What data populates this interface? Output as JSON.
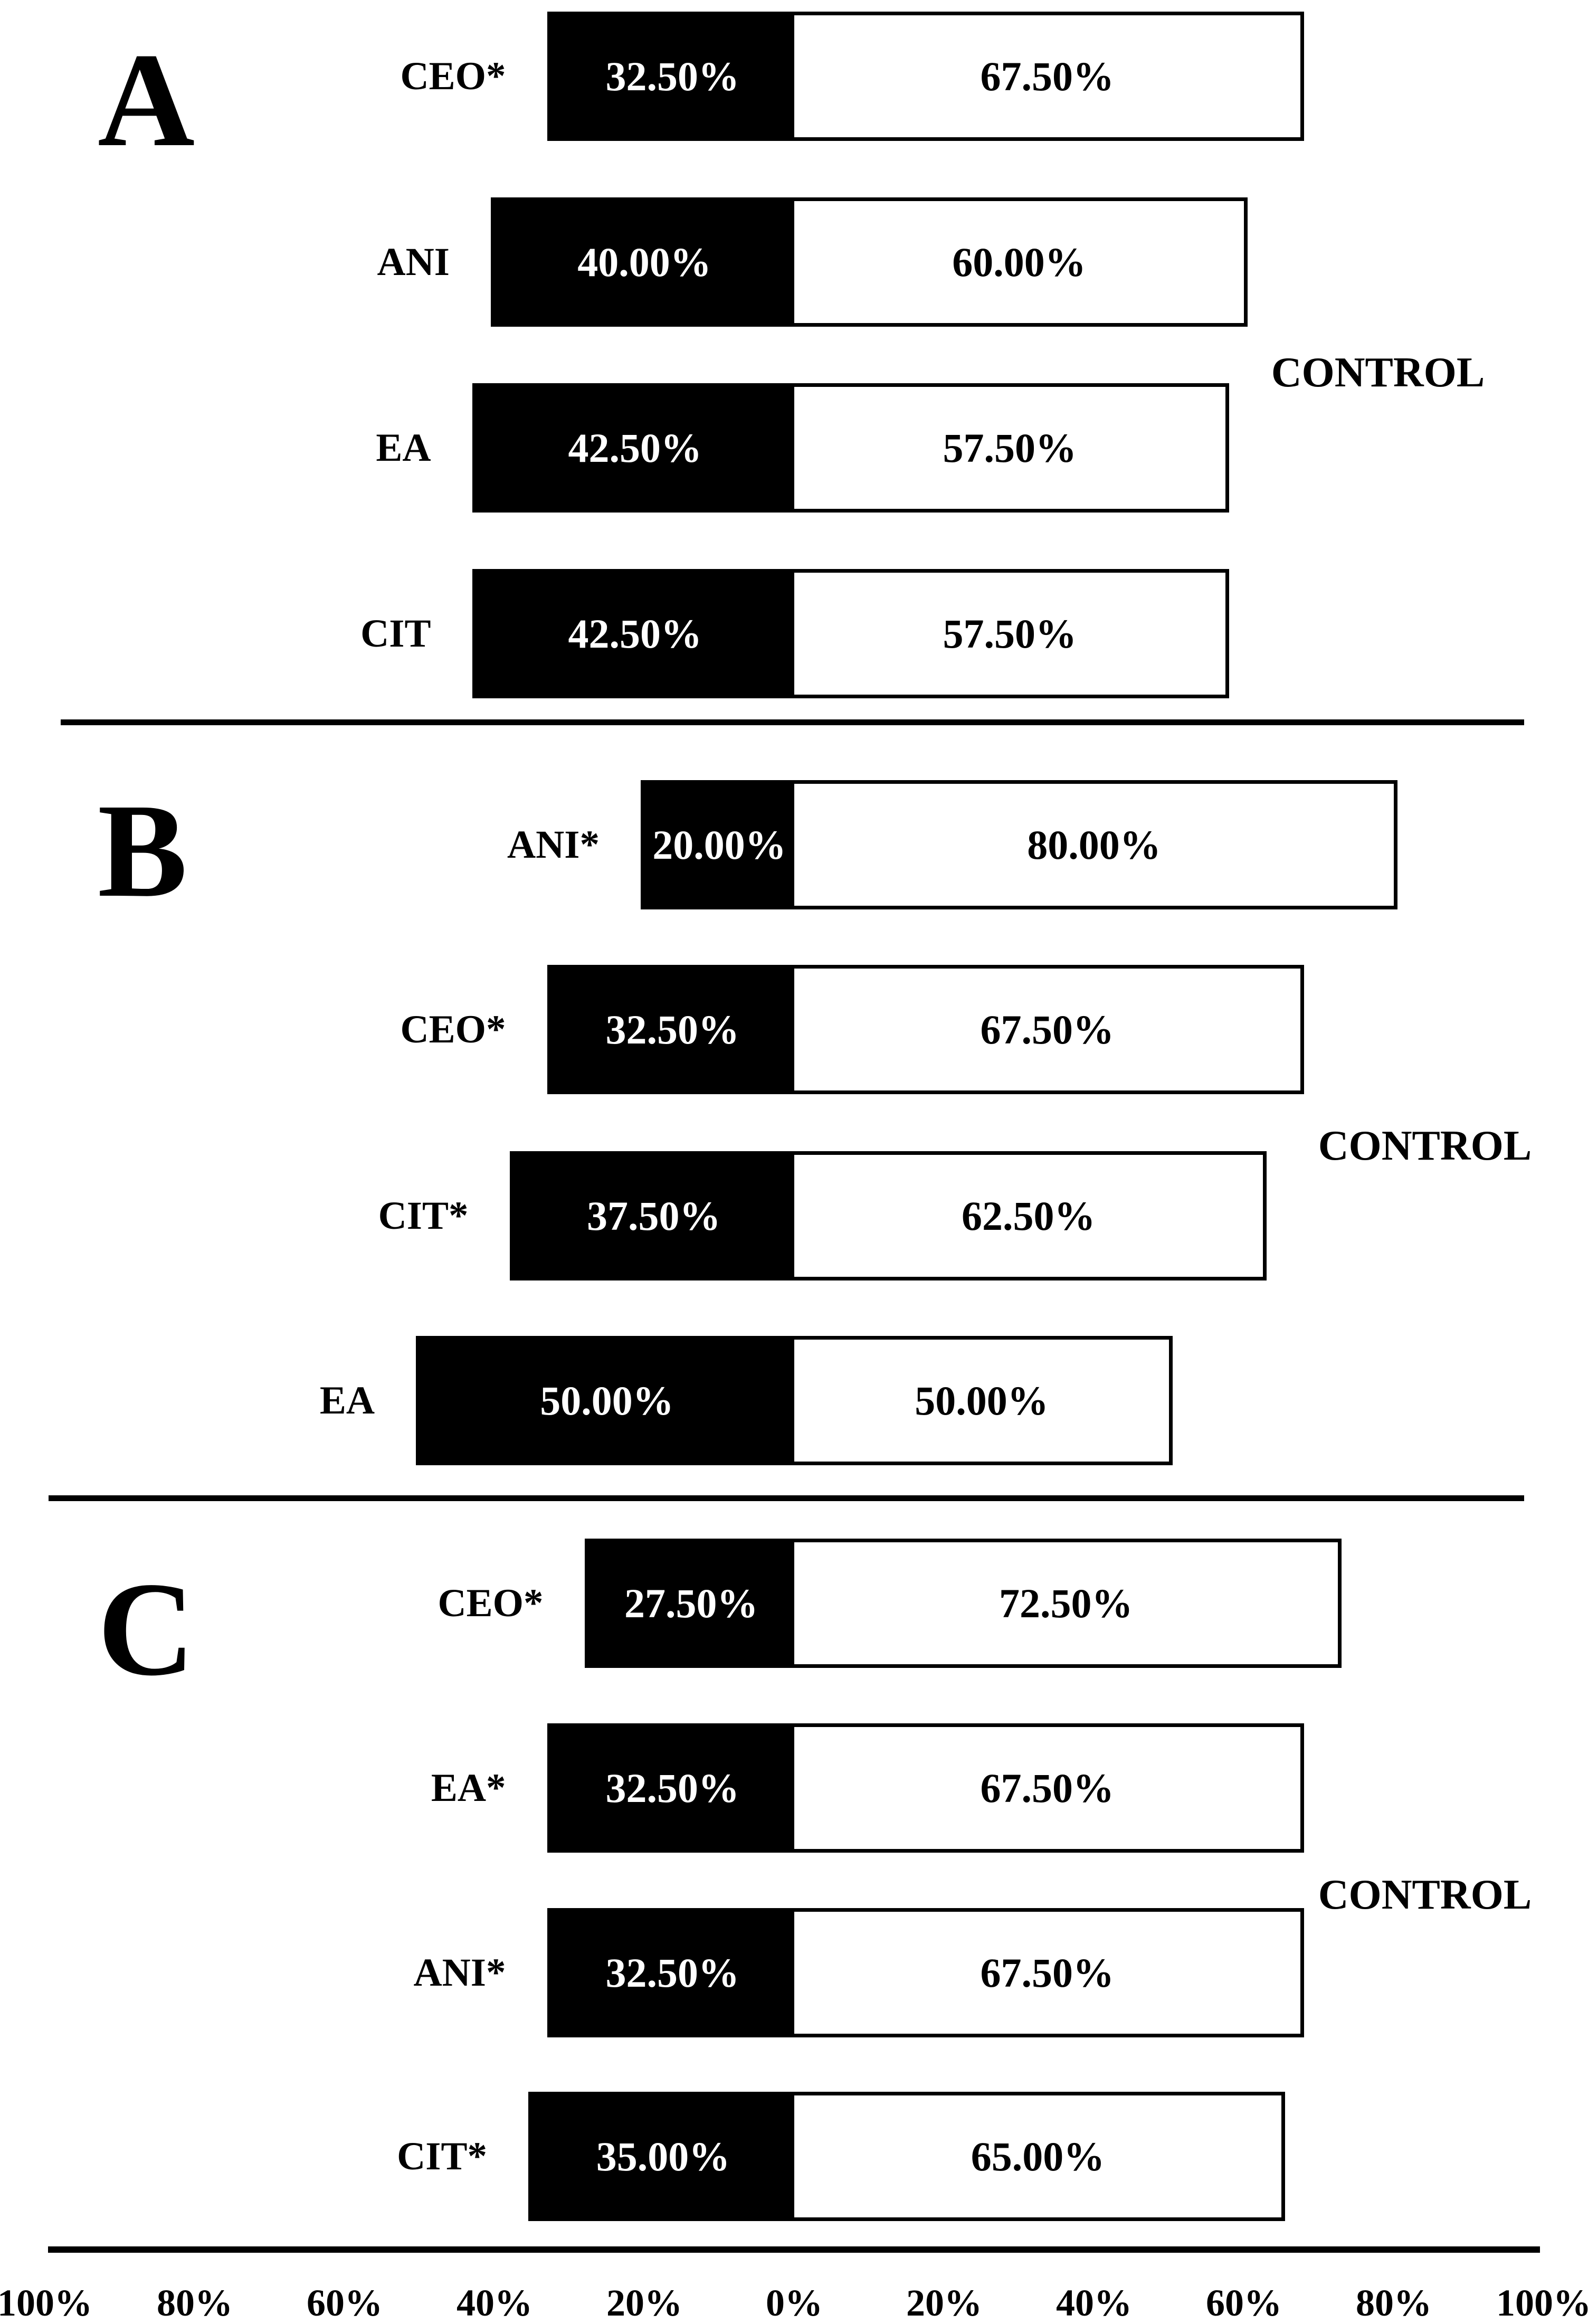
{
  "figure_title": "",
  "colors": {
    "background": "#ffffff",
    "left_segment_fill": "#000000",
    "right_segment_fill": "#ffffff",
    "bar_border": "#000000",
    "text": "#000000",
    "left_segment_text": "#ffffff",
    "right_segment_text": "#000000"
  },
  "chart_data": {
    "type": "bar",
    "variant": "horizontal-diverging-stacked",
    "unit": "%",
    "xlabel": "",
    "ylabel": "",
    "x_range_pct": [
      -100,
      100
    ],
    "grid": false,
    "legend_position": "right-of-each-panel",
    "axis_ticks": [
      "100%",
      "80%",
      "60%",
      "40%",
      "20%",
      "0%",
      "20%",
      "40%",
      "60%",
      "80%",
      "100%"
    ],
    "panels": [
      {
        "panel": "A",
        "right_label": "CONTROL",
        "rows": [
          {
            "category": "CEO*",
            "left_value": 32.5,
            "right_value": 67.5,
            "left_label": "32.50%",
            "right_label": "67.50%"
          },
          {
            "category": "ANI",
            "left_value": 40.0,
            "right_value": 60.0,
            "left_label": "40.00%",
            "right_label": "60.00%"
          },
          {
            "category": "EA",
            "left_value": 42.5,
            "right_value": 57.5,
            "left_label": "42.50%",
            "right_label": "57.50%"
          },
          {
            "category": "CIT",
            "left_value": 42.5,
            "right_value": 57.5,
            "left_label": "42.50%",
            "right_label": "57.50%"
          }
        ]
      },
      {
        "panel": "B",
        "right_label": "CONTROL",
        "rows": [
          {
            "category": "ANI*",
            "left_value": 20.0,
            "right_value": 80.0,
            "left_label": "20.00%",
            "right_label": "80.00%"
          },
          {
            "category": "CEO*",
            "left_value": 32.5,
            "right_value": 67.5,
            "left_label": "32.50%",
            "right_label": "67.50%"
          },
          {
            "category": "CIT*",
            "left_value": 37.5,
            "right_value": 62.5,
            "left_label": "37.50%",
            "right_label": "62.50%"
          },
          {
            "category": "EA",
            "left_value": 50.0,
            "right_value": 50.0,
            "left_label": "50.00%",
            "right_label": "50.00%"
          }
        ]
      },
      {
        "panel": "C",
        "right_label": "CONTROL",
        "rows": [
          {
            "category": "CEO*",
            "left_value": 27.5,
            "right_value": 72.5,
            "left_label": "27.50%",
            "right_label": "72.50%"
          },
          {
            "category": "EA*",
            "left_value": 32.5,
            "right_value": 67.5,
            "left_label": "32.50%",
            "right_label": "67.50%"
          },
          {
            "category": "ANI*",
            "left_value": 32.5,
            "right_value": 67.5,
            "left_label": "32.50%",
            "right_label": "67.50%"
          },
          {
            "category": "CIT*",
            "left_value": 35.0,
            "right_value": 65.0,
            "left_label": "35.00%",
            "right_label": "65.00%"
          }
        ]
      }
    ]
  }
}
